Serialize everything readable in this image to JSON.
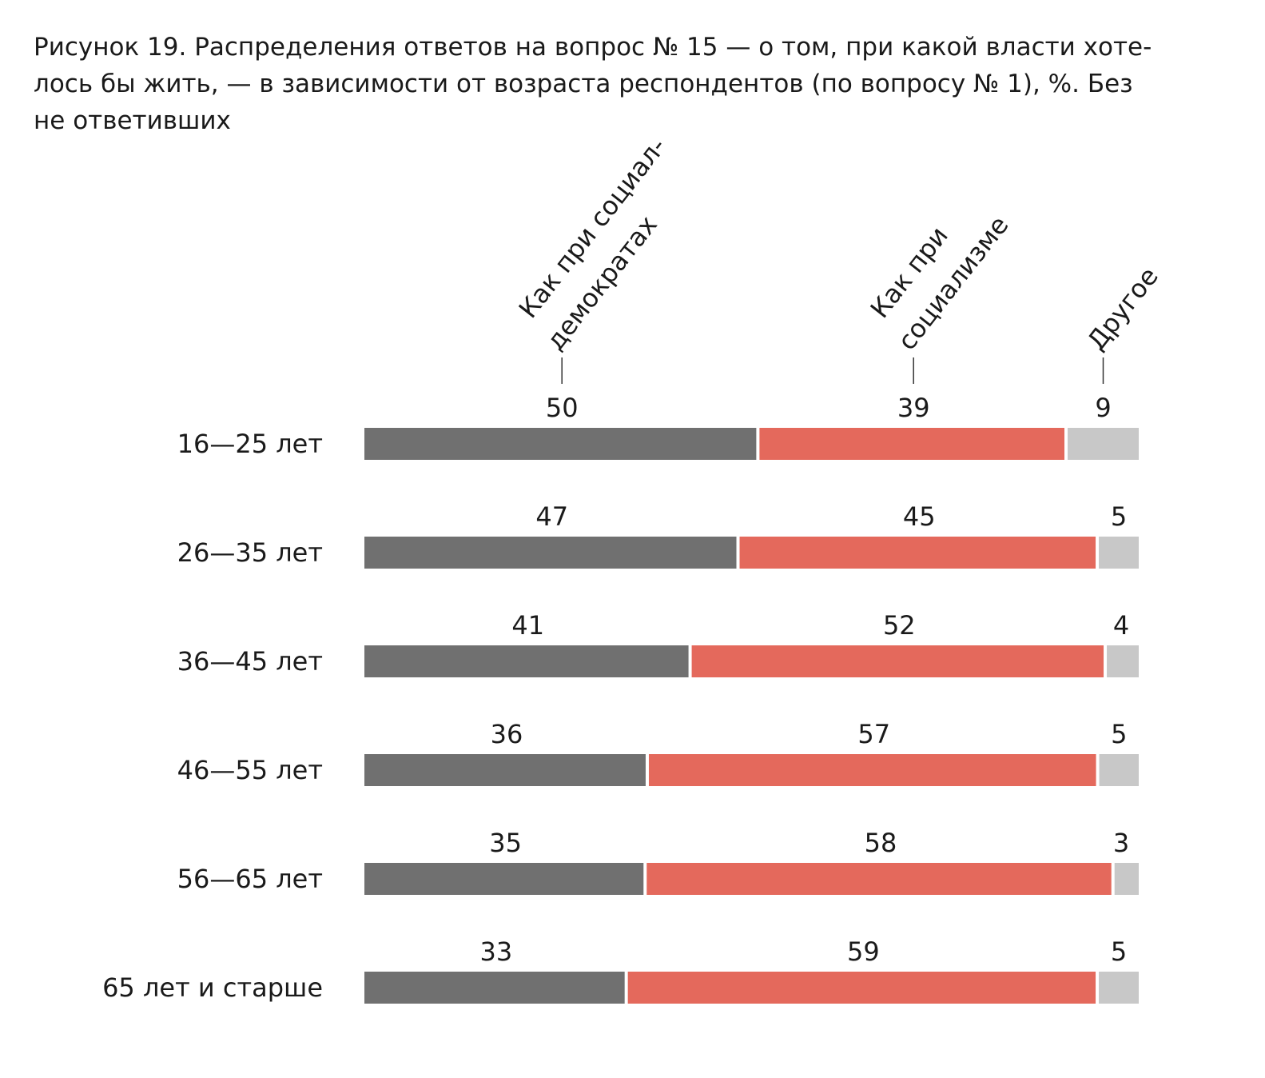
{
  "title_lines": [
    "Рисунок 19. Распределения ответов на вопрос № 15 — о том, при какой власти хоте-",
    "лось бы жить, — в зависимости от возраста респондентов (по вопросу № 1), %. Без",
    "не ответивших"
  ],
  "chart_data": {
    "type": "bar",
    "orientation": "horizontal",
    "stacked": true,
    "title": "Рисунок 19. Распределения ответов на вопрос № 15 — о том, при какой власти хотелось бы жить, — в зависимости от возраста респондентов (по вопросу № 1), %. Без не ответивших",
    "categories": [
      "16—25 лет",
      "26—35 лет",
      "36—45 лет",
      "46—55 лет",
      "56—65 лет",
      "65 лет и старше"
    ],
    "series": [
      {
        "name": "Как при социал-демократах",
        "label_lines": [
          "Как при социал-",
          "демократах"
        ],
        "color": "#707070",
        "values": [
          50,
          47,
          41,
          36,
          35,
          33
        ]
      },
      {
        "name": "Как при социализме",
        "label_lines": [
          "Как при",
          "социализме"
        ],
        "color": "#e4695c",
        "values": [
          39,
          45,
          52,
          57,
          58,
          59
        ]
      },
      {
        "name": "Другое",
        "label_lines": [
          "Другое"
        ],
        "color": "#c8c8c8",
        "values": [
          9,
          5,
          4,
          5,
          3,
          5
        ]
      }
    ],
    "legend_placement": "top, rotated column headers",
    "grid": false
  }
}
